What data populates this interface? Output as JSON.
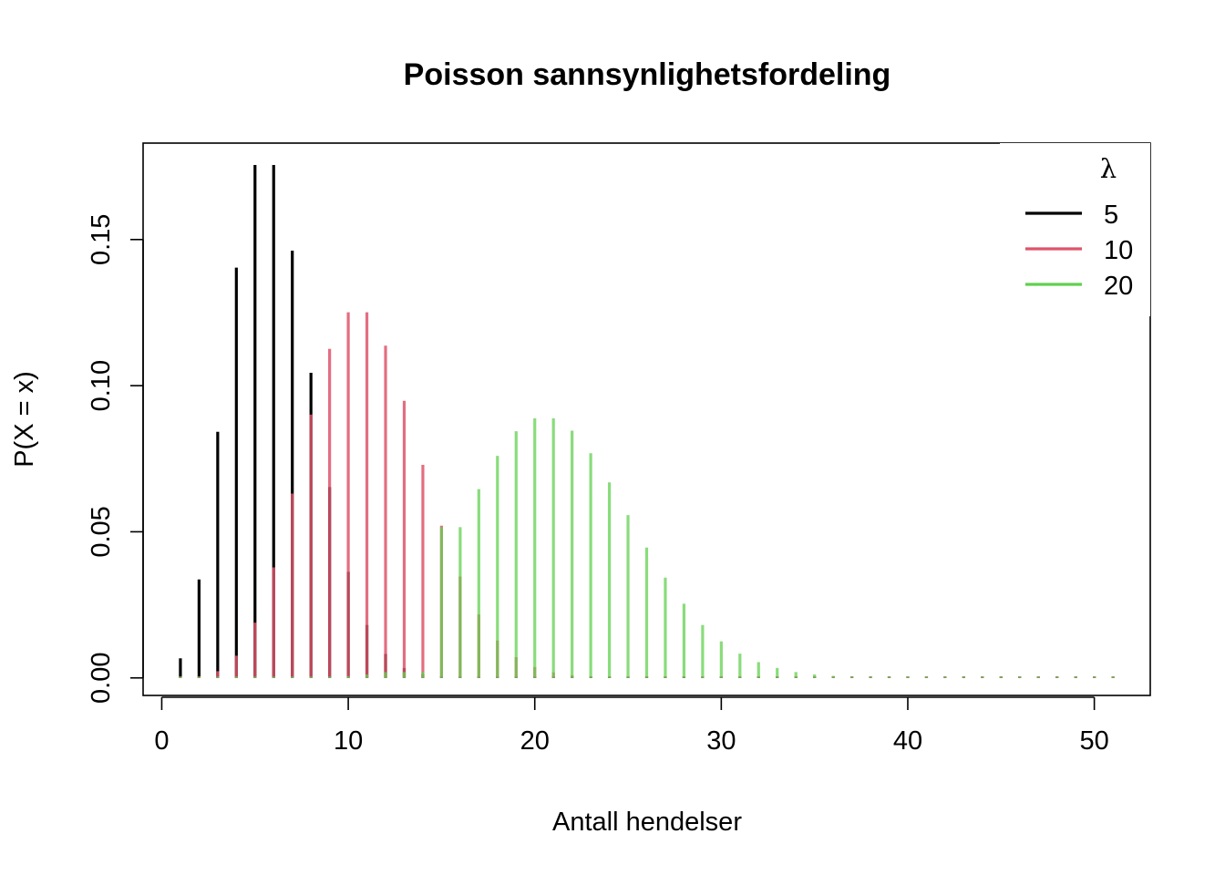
{
  "chart_data": {
    "type": "bar",
    "title": "Poisson sannsynlighetsfordeling",
    "xlabel": "Antall hendelser",
    "ylabel": "P(X = x)",
    "xlim": [
      -1,
      53
    ],
    "ylim": [
      -0.006,
      0.183
    ],
    "xticks": [
      0,
      10,
      20,
      30,
      40,
      50
    ],
    "xtick_labels": [
      "0",
      "10",
      "20",
      "30",
      "40",
      "50"
    ],
    "yticks": [
      0,
      0.05,
      0.1,
      0.15
    ],
    "ytick_labels": [
      "0.00",
      "0.05",
      "0.10",
      "0.15"
    ],
    "grid": false,
    "legend": {
      "title": "λ",
      "position": "top-right",
      "entries": [
        {
          "label": "5",
          "color": "#000000"
        },
        {
          "label": "10",
          "color": "#DF536B"
        },
        {
          "label": "20",
          "color": "#61D04F"
        }
      ]
    },
    "x": [
      1,
      2,
      3,
      4,
      5,
      6,
      7,
      8,
      9,
      10,
      11,
      12,
      13,
      14,
      15,
      16,
      17,
      18,
      19,
      20,
      21,
      22,
      23,
      24,
      25,
      26,
      27,
      28,
      29,
      30,
      31,
      32,
      33,
      34,
      35,
      36,
      37,
      38,
      39,
      40,
      41,
      42,
      43,
      44,
      45,
      46,
      47,
      48,
      49,
      50,
      51
    ],
    "series": [
      {
        "name": "5",
        "color": "#000000",
        "opacity": 1.0,
        "values": [
          0.0067,
          0.0337,
          0.0842,
          0.1404,
          0.1755,
          0.1755,
          0.1462,
          0.1044,
          0.0653,
          0.0363,
          0.0181,
          0.0082,
          0.0034,
          0.0013,
          0.0005,
          0.0002,
          0.0001,
          0,
          0,
          0,
          0,
          0,
          0,
          0,
          0,
          0,
          0,
          0,
          0,
          0,
          0,
          0,
          0,
          0,
          0,
          0,
          0,
          0,
          0,
          0,
          0,
          0,
          0,
          0,
          0,
          0,
          0,
          0,
          0,
          0,
          0
        ]
      },
      {
        "name": "10",
        "color": "#DF536B",
        "opacity": 0.85,
        "values": [
          5e-05,
          0.0005,
          0.0023,
          0.0076,
          0.0189,
          0.0378,
          0.0631,
          0.0901,
          0.1126,
          0.1251,
          0.1251,
          0.1137,
          0.0948,
          0.0729,
          0.0521,
          0.0347,
          0.0217,
          0.0128,
          0.0071,
          0.0037,
          0.0019,
          0.0009,
          0.0004,
          0.0002,
          0.0001,
          0,
          0,
          0,
          0,
          0,
          0,
          0,
          0,
          0,
          0,
          0,
          0,
          0,
          0,
          0,
          0,
          0,
          0,
          0,
          0,
          0,
          0,
          0,
          0,
          0,
          0
        ]
      },
      {
        "name": "20",
        "color": "#61D04F",
        "opacity": 0.75,
        "values": [
          0,
          0,
          0,
          0,
          0,
          0,
          0,
          0,
          0.0003,
          0.0006,
          0.0012,
          0.002,
          0.002,
          0.0021,
          0.0516,
          0.0516,
          0.0646,
          0.076,
          0.0844,
          0.0888,
          0.0888,
          0.0846,
          0.0769,
          0.0669,
          0.0557,
          0.0446,
          0.0343,
          0.0254,
          0.0181,
          0.0125,
          0.0083,
          0.0054,
          0.0034,
          0.002,
          0.0012,
          0.0007,
          0.0004,
          0.0002,
          0.0001,
          0.0001,
          0,
          0,
          0,
          0,
          0,
          0,
          0,
          0,
          0,
          0,
          0
        ]
      }
    ]
  }
}
